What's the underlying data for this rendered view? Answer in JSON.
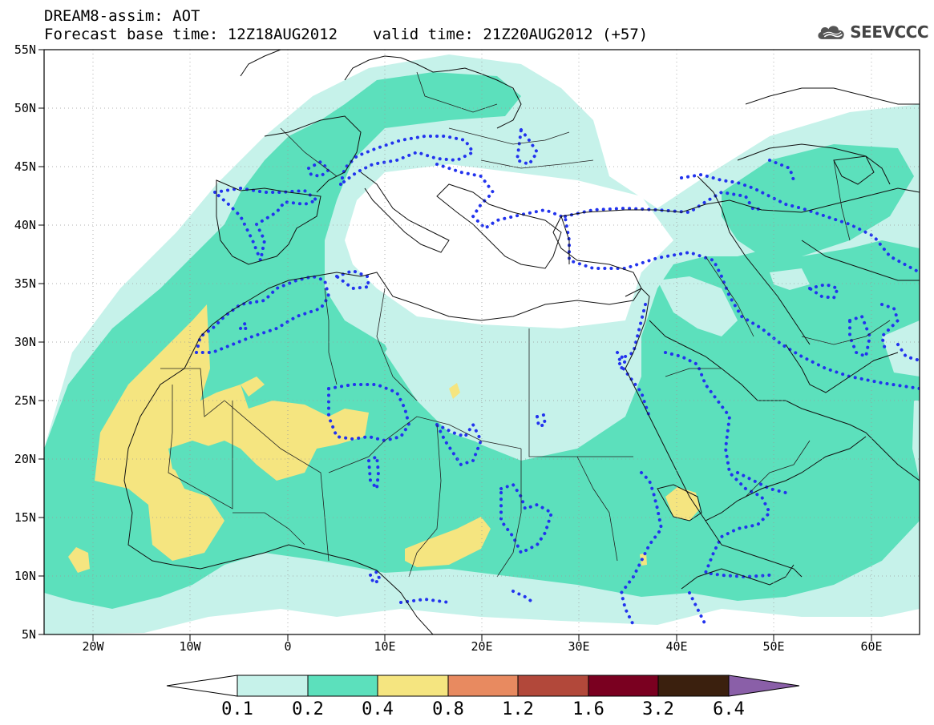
{
  "header": {
    "line1": "DREAM8-assim: AOT",
    "base_time": "Forecast base time: 12Z18AUG2012",
    "valid_time": "valid time: 21Z20AUG2012 (+57)"
  },
  "logo": {
    "text": "SEEVCCC",
    "icon": "cloud-icon",
    "color": "#444444"
  },
  "map": {
    "lon_range": [
      -25,
      65
    ],
    "lat_range": [
      5,
      55
    ],
    "lon_ticks": [
      "20W",
      "10W",
      "0",
      "10E",
      "20E",
      "30E",
      "40E",
      "50E",
      "60E"
    ],
    "lat_ticks": [
      "55N",
      "50N",
      "45N",
      "40N",
      "35N",
      "30N",
      "25N",
      "20N",
      "15N",
      "10N",
      "5N"
    ],
    "grid_lines": true,
    "dotted_contour_color": "#2233ee"
  },
  "colorbar": {
    "levels": [
      "0.1",
      "0.2",
      "0.4",
      "0.8",
      "1.2",
      "1.6",
      "3.2",
      "6.4"
    ],
    "colors": [
      "#c6f2ea",
      "#5ce0bc",
      "#f5e580",
      "#e88a60",
      "#b2483a",
      "#7a0020",
      "#3b200e",
      "#8a5fa8"
    ],
    "under_color": "#ffffff",
    "over_color": "#8a5fa8"
  }
}
